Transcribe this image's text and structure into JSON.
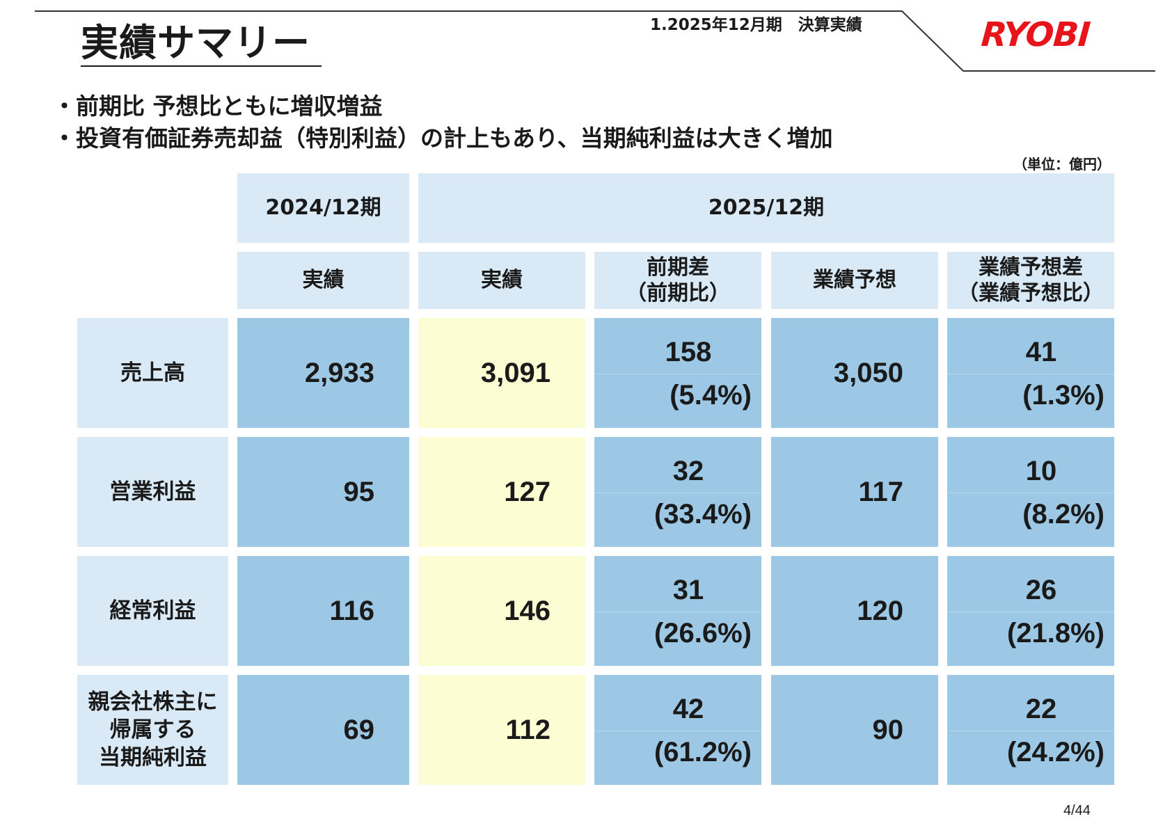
{
  "header": {
    "title": "実績サマリー",
    "section": "1.2025年12月期　決算実績",
    "logo": "RYOBI"
  },
  "bullets": [
    "・前期比 予想比ともに増収増益",
    "・投資有価証券売却益（特別利益）の計上もあり、当期純利益は大きく増加"
  ],
  "unit": "（単位：億円）",
  "table": {
    "period_prev": "2024/12期",
    "period_curr": "2025/12期",
    "col_prev_actual": "実績",
    "col_curr_actual": "実績",
    "col_yoy": [
      "前期差",
      "（前期比）"
    ],
    "col_forecast": "業績予想",
    "col_vs_forecast": [
      "業績予想差",
      "（業績予想比）"
    ],
    "rows": [
      {
        "label": [
          "売上高"
        ],
        "prev": "2,933",
        "curr": "3,091",
        "yoy": "158",
        "yoy_pct": "(5.4%)",
        "forecast": "3,050",
        "vs_fc": "41",
        "vs_fc_pct": "(1.3%)"
      },
      {
        "label": [
          "営業利益"
        ],
        "prev": "95",
        "curr": "127",
        "yoy": "32",
        "yoy_pct": "(33.4%)",
        "forecast": "117",
        "vs_fc": "10",
        "vs_fc_pct": "(8.2%)"
      },
      {
        "label": [
          "経常利益"
        ],
        "prev": "116",
        "curr": "146",
        "yoy": "31",
        "yoy_pct": "(26.6%)",
        "forecast": "120",
        "vs_fc": "26",
        "vs_fc_pct": "(21.8%)"
      },
      {
        "label": [
          "親会社株主に",
          "帰属する",
          "当期純利益"
        ],
        "prev": "69",
        "curr": "112",
        "yoy": "42",
        "yoy_pct": "(61.2%)",
        "forecast": "90",
        "vs_fc": "22",
        "vs_fc_pct": "(24.2%)"
      }
    ]
  },
  "page_number": "4/44",
  "colors": {
    "header_fill": "#d9eaf6",
    "value_fill": "#9dc8e5",
    "highlight_fill": "#fdfdd3",
    "logo_red": "#e8141b"
  }
}
